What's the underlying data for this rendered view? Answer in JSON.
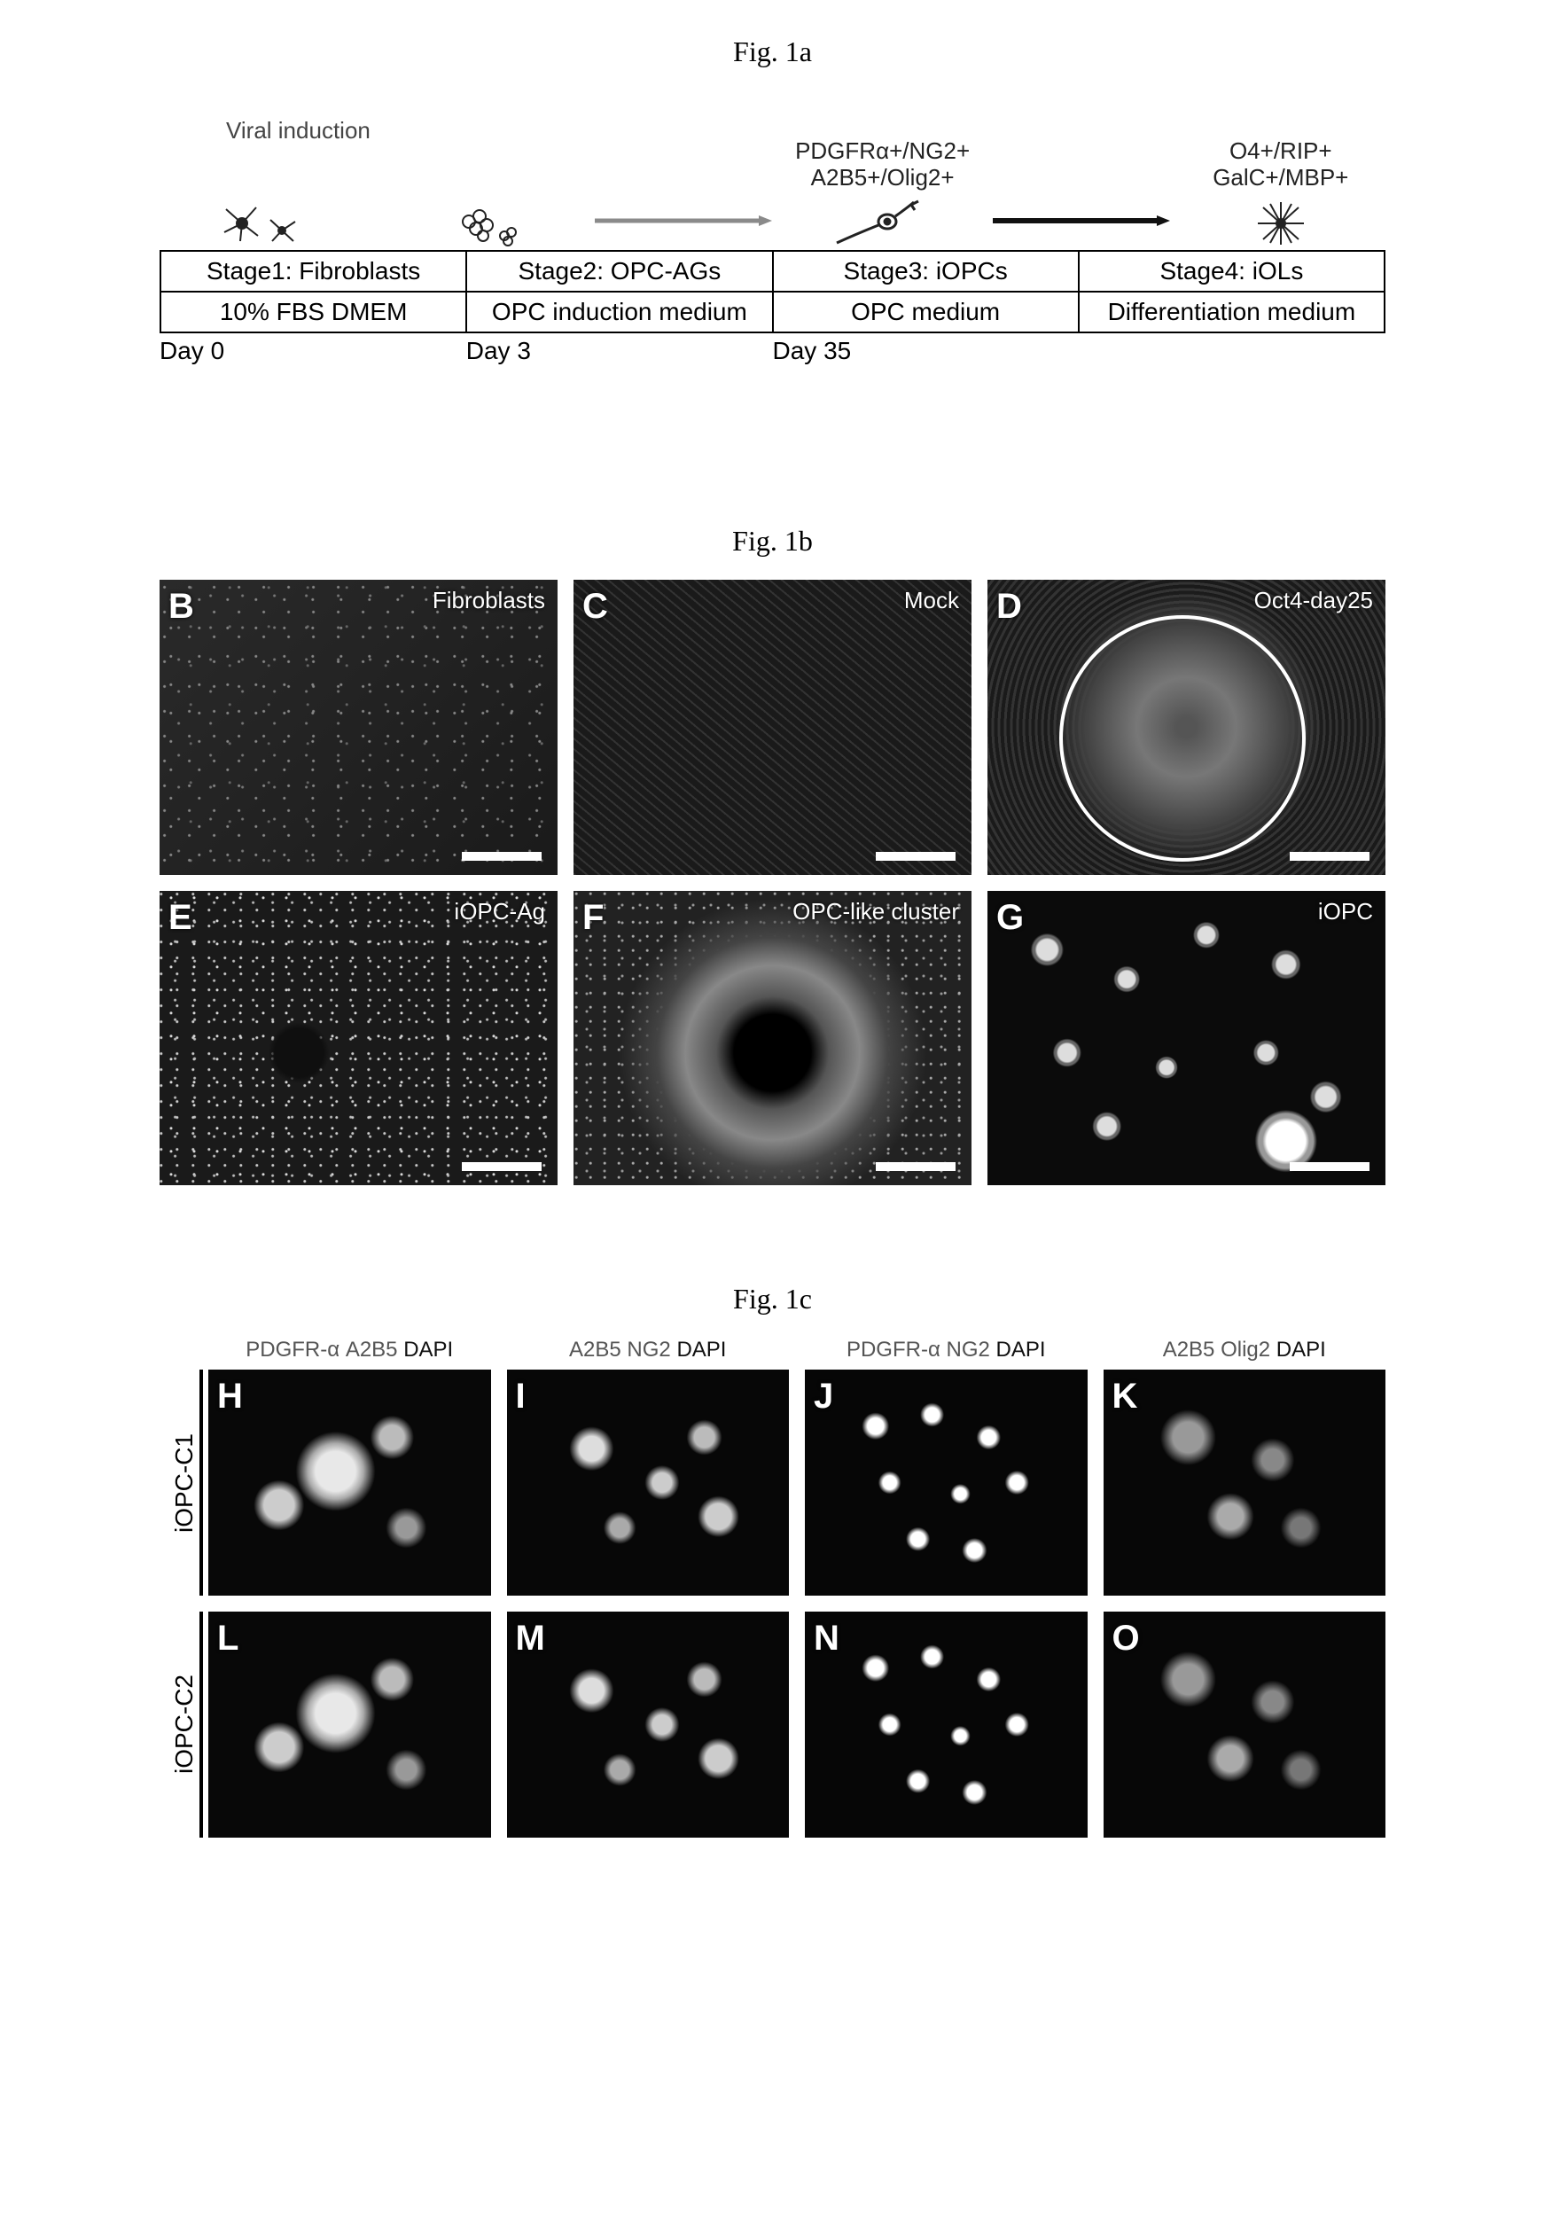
{
  "fig1a": {
    "title": "Fig. 1a",
    "viral_label": "Viral induction",
    "markers_stage3_line1": "PDGFRα+/NG2+",
    "markers_stage3_line2": "A2B5+/Olig2+",
    "markers_stage4_line1": "O4+/RIP+",
    "markers_stage4_line2": "GalC+/MBP+",
    "stages": {
      "s1": "Stage1: Fibroblasts",
      "s2": "Stage2: OPC-AGs",
      "s3": "Stage3: iOPCs",
      "s4": "Stage4: iOLs"
    },
    "media": {
      "m1": "10% FBS DMEM",
      "m2": "OPC induction medium",
      "m3": "OPC medium",
      "m4": "Differentiation medium"
    },
    "days": {
      "d0": "Day 0",
      "d3": "Day 3",
      "d35": "Day 35"
    },
    "arrow_color_1": "#8a8a8a",
    "arrow_color_2": "#8a8a8a",
    "arrow_color_3": "#111111"
  },
  "fig1b": {
    "title": "Fig. 1b",
    "panels": [
      {
        "letter": "B",
        "tag": "Fibroblasts",
        "tex": "tex-fibro"
      },
      {
        "letter": "C",
        "tag": "Mock",
        "tex": "tex-mock"
      },
      {
        "letter": "D",
        "tag": "Oct4-day25",
        "tex": "tex-oct4",
        "circle": true
      },
      {
        "letter": "E",
        "tag": "iOPC-Ag",
        "tex": "tex-ag"
      },
      {
        "letter": "F",
        "tag": "OPC-like cluster",
        "tex": "tex-cluster"
      },
      {
        "letter": "G",
        "tag": "iOPC",
        "tex": "tex-iopc"
      }
    ]
  },
  "fig1c": {
    "title": "Fig. 1c",
    "headers": [
      {
        "a": "PDGFR-α",
        "b": "A2B5",
        "c": "DAPI"
      },
      {
        "a": "A2B5",
        "b": "NG2",
        "c": "DAPI"
      },
      {
        "a": "PDGFR-α",
        "b": "NG2",
        "c": "DAPI"
      },
      {
        "a": "A2B5",
        "b": "Olig2",
        "c": "DAPI"
      }
    ],
    "rows": [
      {
        "label": "iOPC-C1",
        "panels": [
          {
            "letter": "H",
            "tex": "tex-fluor1"
          },
          {
            "letter": "I",
            "tex": "tex-fluor2"
          },
          {
            "letter": "J",
            "tex": "tex-fluor3"
          },
          {
            "letter": "K",
            "tex": "tex-fluor4"
          }
        ]
      },
      {
        "label": "iOPC-C2",
        "panels": [
          {
            "letter": "L",
            "tex": "tex-fluor1"
          },
          {
            "letter": "M",
            "tex": "tex-fluor2"
          },
          {
            "letter": "N",
            "tex": "tex-fluor3"
          },
          {
            "letter": "O",
            "tex": "tex-fluor4"
          }
        ]
      }
    ]
  },
  "colors": {
    "background": "#ffffff",
    "text": "#000000",
    "panel_bg": "#0a0a0a",
    "scalebar": "#ffffff"
  }
}
